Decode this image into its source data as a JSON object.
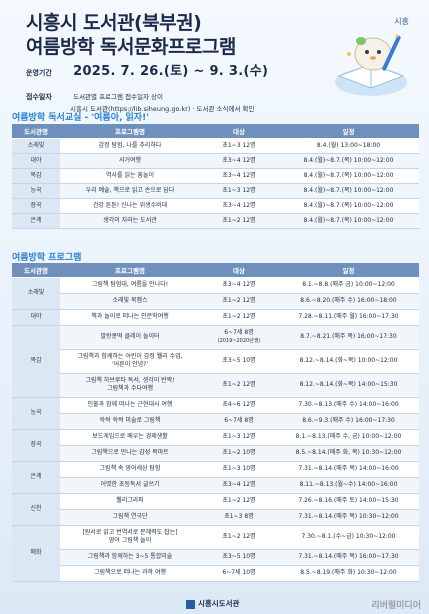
{
  "header": {
    "title_line1": "시흥시 도서관(북부권)",
    "title_line2": "여름방학 독서문화프로그램",
    "corner_logo": "시흥"
  },
  "meta": {
    "period_label": "운영기간",
    "period_value": "2025. 7. 26.(토) ~ 9. 3.(수)",
    "apply_label": "접수일자",
    "apply_value_1": "도서관별 프로그램 접수일자 상이",
    "apply_value_2": "시흥시 도서관(https://lib.siheung.go.kr) · 도서관 소식에서 확인"
  },
  "section1": {
    "title": "여름방학 독서교실 - '여름아, 읽자!'",
    "headers": [
      "도서관명",
      "프로그램명",
      "대상",
      "일정"
    ],
    "rows": [
      {
        "lib": "소래빛",
        "name": "감정 탐험, 나를 추리하다",
        "target": "초1~3 12명",
        "schedule": "8.4.(월) 13:00~18:00"
      },
      {
        "lib": "대야",
        "name": "서거여행",
        "target": "초3~4 12명",
        "schedule": "8.4.(월)~8.7.(목) 10:00~12:00"
      },
      {
        "lib": "목감",
        "name": "역사를 읽는 흥놀이",
        "target": "초3~4 12명",
        "schedule": "8.4.(월)~8.7.(목) 10:00~12:00"
      },
      {
        "lib": "능곡",
        "name": "우리 예술, 책으로 읽고 손으로 담다",
        "target": "초1~3 12명",
        "schedule": "8.4.(월)~8.7.(목) 10:00~12:00"
      },
      {
        "lib": "장곡",
        "name": "건강 튼튼! 신나는 위생수비대",
        "target": "초3~4 12명",
        "schedule": "8.4.(월)~8.7.(목) 10:00~12:00"
      },
      {
        "lib": "은계",
        "name": "생각이 자라는 도서관",
        "target": "초1~2 12명",
        "schedule": "8.4.(월)~8.7.(목) 10:00~12:00"
      }
    ]
  },
  "section2": {
    "title": "여름방학 프로그램",
    "headers": [
      "도서관명",
      "프로그램명",
      "대상",
      "일정"
    ],
    "groups": [
      {
        "lib": "소래빛",
        "rows": [
          {
            "name": "그림책 탐험대, 여름을 만나다!",
            "target": "초3~4 12명",
            "schedule": "8.1.~8.8.(매주 금) 10:00~12:00"
          },
          {
            "name": "소래빛 북캠스",
            "target": "초1~2 12명",
            "schedule": "8.6.~8.20.(매주 수) 16:00~18:00"
          }
        ]
      },
      {
        "lib": "대야",
        "rows": [
          {
            "name": "책과 놀이로 떠나는 인문학여행",
            "target": "초1~2 12명",
            "schedule": "7.28.~8.11.(매주 월) 16:00~17:30"
          }
        ]
      },
      {
        "lib": "목감",
        "rows": [
          {
            "name": "말랑콩떡 클레이 놀이터",
            "target": "6~7세 8명",
            "target_sub": "(2019~2020년생)",
            "schedule": "8.7.~8.21.(매주 목) 16:00~17:30"
          },
          {
            "name": "그림책과 함께하는 어린이 감정 웰리 수업,",
            "name_sub": "'어른이 안녕?'",
            "target": "초3~5 10명",
            "schedule": "8.12.~8.14.(화~목) 10:00~12:00"
          },
          {
            "name": "그림책 하브루타 독서, 생각이 반짝!",
            "name_sub": "그림책과 수다여행",
            "target": "초1~2 12명",
            "schedule": "8.12.~8.14.(화~목) 14:00~15:30"
          }
        ]
      },
      {
        "lib": "능곡",
        "rows": [
          {
            "name": "인물과 함께 떠나는 근현대사 여행",
            "target": "초4~6 12명",
            "schedule": "7.30.~8.13.(매주 수) 14:00~16:00"
          },
          {
            "name": "쓱싹 쓱싹 미술로 그림책",
            "target": "6~7세 8명",
            "schedule": "8.6.~9.3.(매주 수) 16:00~17:30"
          }
        ]
      },
      {
        "lib": "장곡",
        "rows": [
          {
            "name": "보드게임으로 배우는 경제생활",
            "target": "초1~3 12명",
            "schedule": "8.1.~8.13.(매주 수, 금) 10:00~12:00"
          },
          {
            "name": "그림책으로 만나는 감성 목마트",
            "target": "초1~2 10명",
            "schedule": "8.5.~8.14.(매주 화, 목) 10:30~12:00"
          }
        ]
      },
      {
        "lib": "은계",
        "rows": [
          {
            "name": "그림책 속 영어세상 탐험",
            "target": "초1~3 10명",
            "schedule": "7.31.~8.14.(매주 목) 14:00~16:00"
          },
          {
            "name": "어엿한 초등독서 글쓰기",
            "target": "초3~4 12명",
            "schedule": "8.11.~8.13.(월~수) 14:00~16:00"
          }
        ]
      },
      {
        "lib": "신천",
        "rows": [
          {
            "name": "웰리그라피",
            "target": "초1~2 12명",
            "schedule": "7.26.~8.16.(매주 토) 14:00~15:30"
          },
          {
            "name": "그림책 연극단",
            "target": "초1~3 8명",
            "schedule": "7.31.~8.14.(매주 목) 10:30~12:00"
          }
        ]
      },
      {
        "lib": "매화",
        "rows": [
          {
            "name": "[원서로 읽고 번역서로 문해력도 잡는]",
            "name_sub": "영어 그림책 놀이",
            "target": "초1~2 12명",
            "schedule": "7.30.~8.1.(수~금) 10:30~12:00"
          },
          {
            "name": "그림책과 함께하는 3~5 통합미술",
            "target": "초3~5 10명",
            "schedule": "7.31.~8.14.(매주 목) 16:00~17:30"
          },
          {
            "name": "그림책으로 떠나는 과학 여행",
            "target": "6~7세 10명",
            "schedule": "8.5.~8.19.(매주 화) 10:30~12:00"
          }
        ]
      }
    ]
  },
  "footer": {
    "logo_text": "시흥시도서관"
  },
  "watermark": "리버럴미디어"
}
